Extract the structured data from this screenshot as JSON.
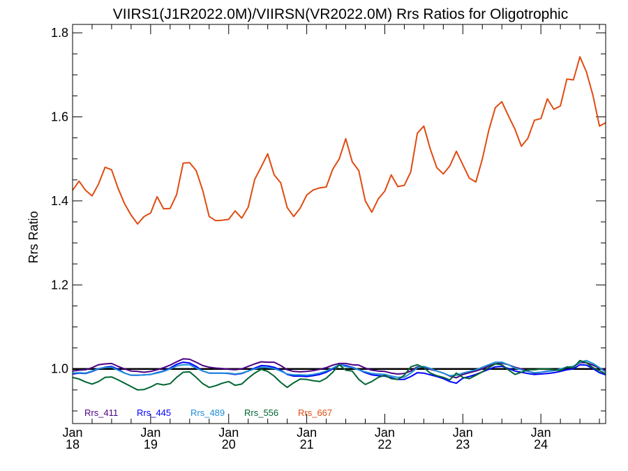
{
  "chart_data": {
    "type": "line",
    "title": "VIIRS1(J1R2022.0M)/VIIRSN(VR2022.0M)  Rrs Ratios for Oligotrophic",
    "ylabel": "Rrs Ratio",
    "xlabel": "",
    "ylim": [
      0.87,
      1.82
    ],
    "xlim": [
      2018.0,
      2024.83
    ],
    "yticks": [
      {
        "value": 1.0,
        "label": "1.0"
      },
      {
        "value": 1.2,
        "label": "1.2"
      },
      {
        "value": 1.4,
        "label": "1.4"
      },
      {
        "value": 1.6,
        "label": "1.6"
      },
      {
        "value": 1.8,
        "label": "1.8"
      }
    ],
    "xticks": [
      {
        "value": 2018,
        "month": "Jan",
        "year": "18"
      },
      {
        "value": 2019,
        "month": "Jan",
        "year": "19"
      },
      {
        "value": 2020,
        "month": "Jan",
        "year": "20"
      },
      {
        "value": 2021,
        "month": "Jan",
        "year": "21"
      },
      {
        "value": 2022,
        "month": "Jan",
        "year": "22"
      },
      {
        "value": 2023,
        "month": "Jan",
        "year": "23"
      },
      {
        "value": 2024,
        "month": "Jan",
        "year": "24"
      }
    ],
    "reference_line": 1.0,
    "legend_position": "bottom-left",
    "series": [
      {
        "name": "Rrs_411",
        "color": "#4b0082",
        "x": [
          2018.0,
          2018.083,
          2018.167,
          2018.25,
          2018.333,
          2018.417,
          2018.5,
          2018.583,
          2018.667,
          2018.75,
          2018.833,
          2018.917,
          2019.0,
          2019.083,
          2019.167,
          2019.25,
          2019.333,
          2019.417,
          2019.5,
          2019.583,
          2019.667,
          2019.75,
          2019.833,
          2019.917,
          2020.0,
          2020.083,
          2020.167,
          2020.25,
          2020.333,
          2020.417,
          2020.5,
          2020.583,
          2020.667,
          2020.75,
          2020.833,
          2020.917,
          2021.0,
          2021.083,
          2021.167,
          2021.25,
          2021.333,
          2021.417,
          2021.5,
          2021.583,
          2021.667,
          2021.75,
          2021.833,
          2021.917,
          2022.0,
          2022.083,
          2022.167,
          2022.25,
          2022.333,
          2022.417,
          2022.5,
          2022.583,
          2022.667,
          2022.75,
          2022.833,
          2022.917,
          2023.0,
          2023.083,
          2023.167,
          2023.25,
          2023.333,
          2023.417,
          2023.5,
          2023.583,
          2023.667,
          2023.75,
          2023.833,
          2023.917,
          2024.0,
          2024.083,
          2024.167,
          2024.25,
          2024.333,
          2024.417,
          2024.5,
          2024.583,
          2024.667,
          2024.75,
          2024.83
        ],
        "values": [
          0.995,
          0.997,
          0.998,
          1.003,
          1.01,
          1.012,
          1.013,
          1.006,
          1.0,
          0.995,
          0.994,
          0.992,
          0.994,
          0.998,
          1.003,
          1.009,
          1.017,
          1.024,
          1.023,
          1.016,
          1.008,
          1.004,
          1.002,
          1.001,
          0.999,
          0.998,
          1.0,
          1.006,
          1.012,
          1.017,
          1.016,
          1.016,
          1.008,
          0.998,
          0.994,
          0.993,
          0.994,
          0.996,
          0.999,
          1.003,
          1.009,
          1.013,
          1.013,
          1.01,
          1.009,
          1.002,
          0.997,
          0.995,
          0.994,
          0.99,
          0.988,
          0.989,
          0.995,
          1.005,
          1.003,
          0.999,
          0.995,
          0.99,
          0.983,
          0.979,
          0.987,
          0.991,
          0.995,
          1.0,
          1.007,
          1.012,
          1.014,
          1.01,
          1.004,
          1.0,
          0.995,
          0.99,
          0.992,
          0.995,
          0.996,
          0.999,
          1.003,
          1.006,
          1.015,
          1.015,
          1.009,
          1.002,
          0.997
        ]
      },
      {
        "name": "Rrs_445",
        "color": "#0000ff",
        "x": [
          2018.0,
          2018.083,
          2018.167,
          2018.25,
          2018.333,
          2018.417,
          2018.5,
          2018.583,
          2018.667,
          2018.75,
          2018.833,
          2018.917,
          2019.0,
          2019.083,
          2019.167,
          2019.25,
          2019.333,
          2019.417,
          2019.5,
          2019.583,
          2019.667,
          2019.75,
          2019.833,
          2019.917,
          2020.0,
          2020.083,
          2020.167,
          2020.25,
          2020.333,
          2020.417,
          2020.5,
          2020.583,
          2020.667,
          2020.75,
          2020.833,
          2020.917,
          2021.0,
          2021.083,
          2021.167,
          2021.25,
          2021.333,
          2021.417,
          2021.5,
          2021.583,
          2021.667,
          2021.75,
          2021.833,
          2021.917,
          2022.0,
          2022.083,
          2022.167,
          2022.25,
          2022.333,
          2022.417,
          2022.5,
          2022.583,
          2022.667,
          2022.75,
          2022.833,
          2022.917,
          2023.0,
          2023.083,
          2023.167,
          2023.25,
          2023.333,
          2023.417,
          2023.5,
          2023.583,
          2023.667,
          2023.75,
          2023.833,
          2023.917,
          2024.0,
          2024.083,
          2024.167,
          2024.25,
          2024.333,
          2024.417,
          2024.5,
          2024.583,
          2024.667,
          2024.75,
          2024.83
        ],
        "values": [
          0.988,
          0.99,
          0.989,
          0.994,
          1.0,
          1.004,
          1.006,
          0.999,
          0.99,
          0.985,
          0.985,
          0.986,
          0.987,
          0.991,
          0.995,
          1.002,
          1.011,
          1.016,
          1.014,
          1.006,
          0.995,
          0.99,
          0.99,
          0.99,
          0.989,
          0.987,
          0.989,
          0.995,
          1.002,
          1.008,
          1.007,
          1.004,
          0.997,
          0.987,
          0.983,
          0.983,
          0.982,
          0.984,
          0.987,
          0.992,
          1.0,
          1.01,
          1.008,
          1.004,
          0.998,
          0.991,
          0.986,
          0.984,
          0.983,
          0.979,
          0.975,
          0.975,
          0.982,
          0.991,
          0.99,
          0.986,
          0.982,
          0.977,
          0.97,
          0.966,
          0.978,
          0.982,
          0.987,
          0.993,
          0.999,
          1.005,
          1.006,
          1.001,
          0.995,
          0.992,
          0.989,
          0.987,
          0.988,
          0.989,
          0.991,
          0.994,
          0.998,
          1.0,
          1.01,
          1.009,
          1.001,
          0.991,
          0.986
        ]
      },
      {
        "name": "Rrs_489",
        "color": "#1e8fd6",
        "x": [
          2018.0,
          2018.083,
          2018.167,
          2018.25,
          2018.333,
          2018.417,
          2018.5,
          2018.583,
          2018.667,
          2018.75,
          2018.833,
          2018.917,
          2019.0,
          2019.083,
          2019.167,
          2019.25,
          2019.333,
          2019.417,
          2019.5,
          2019.583,
          2019.667,
          2019.75,
          2019.833,
          2019.917,
          2020.0,
          2020.083,
          2020.167,
          2020.25,
          2020.333,
          2020.417,
          2020.5,
          2020.583,
          2020.667,
          2020.75,
          2020.833,
          2020.917,
          2021.0,
          2021.083,
          2021.167,
          2021.25,
          2021.333,
          2021.417,
          2021.5,
          2021.583,
          2021.667,
          2021.75,
          2021.833,
          2021.917,
          2022.0,
          2022.083,
          2022.167,
          2022.25,
          2022.333,
          2022.417,
          2022.5,
          2022.583,
          2022.667,
          2022.75,
          2022.833,
          2022.917,
          2023.0,
          2023.083,
          2023.167,
          2023.25,
          2023.333,
          2023.417,
          2023.5,
          2023.583,
          2023.667,
          2023.75,
          2023.833,
          2023.917,
          2024.0,
          2024.083,
          2024.167,
          2024.25,
          2024.333,
          2024.417,
          2024.5,
          2024.583,
          2024.667,
          2024.75,
          2024.83
        ],
        "values": [
          0.99,
          0.991,
          0.99,
          0.995,
          1.001,
          1.003,
          1.004,
          0.997,
          0.99,
          0.985,
          0.985,
          0.986,
          0.987,
          0.99,
          0.994,
          1.0,
          1.007,
          1.01,
          1.01,
          1.002,
          0.995,
          0.99,
          0.99,
          0.99,
          0.99,
          0.988,
          0.99,
          0.995,
          1.0,
          1.004,
          1.003,
          1.001,
          0.995,
          0.988,
          0.986,
          0.986,
          0.985,
          0.987,
          0.99,
          0.995,
          1.002,
          1.01,
          1.006,
          1.003,
          0.998,
          0.993,
          0.989,
          0.988,
          0.987,
          0.983,
          0.98,
          0.98,
          0.99,
          1.003,
          1.006,
          1.001,
          0.995,
          0.99,
          0.984,
          0.985,
          0.99,
          0.994,
          0.998,
          1.004,
          1.01,
          1.016,
          1.016,
          1.01,
          1.002,
          0.998,
          0.994,
          0.991,
          0.992,
          0.994,
          0.996,
          1.0,
          1.004,
          1.006,
          1.016,
          1.02,
          1.013,
          1.003,
          0.992
        ]
      },
      {
        "name": "Rrs_556",
        "color": "#006432",
        "x": [
          2018.0,
          2018.083,
          2018.167,
          2018.25,
          2018.333,
          2018.417,
          2018.5,
          2018.583,
          2018.667,
          2018.75,
          2018.833,
          2018.917,
          2019.0,
          2019.083,
          2019.167,
          2019.25,
          2019.333,
          2019.417,
          2019.5,
          2019.583,
          2019.667,
          2019.75,
          2019.833,
          2019.917,
          2020.0,
          2020.083,
          2020.167,
          2020.25,
          2020.333,
          2020.417,
          2020.5,
          2020.583,
          2020.667,
          2020.75,
          2020.833,
          2020.917,
          2021.0,
          2021.083,
          2021.167,
          2021.25,
          2021.333,
          2021.417,
          2021.5,
          2021.583,
          2021.667,
          2021.75,
          2021.833,
          2021.917,
          2022.0,
          2022.083,
          2022.167,
          2022.25,
          2022.333,
          2022.417,
          2022.5,
          2022.583,
          2022.667,
          2022.75,
          2022.833,
          2022.917,
          2023.0,
          2023.083,
          2023.167,
          2023.25,
          2023.333,
          2023.417,
          2023.5,
          2023.583,
          2023.667,
          2023.75,
          2023.833,
          2023.917,
          2024.0,
          2024.083,
          2024.167,
          2024.25,
          2024.333,
          2024.417,
          2024.5,
          2024.583,
          2024.667,
          2024.75,
          2024.83
        ],
        "values": [
          0.98,
          0.976,
          0.969,
          0.964,
          0.97,
          0.98,
          0.981,
          0.974,
          0.966,
          0.958,
          0.95,
          0.951,
          0.957,
          0.965,
          0.962,
          0.965,
          0.98,
          0.992,
          0.993,
          0.98,
          0.965,
          0.956,
          0.96,
          0.966,
          0.97,
          0.961,
          0.964,
          0.978,
          0.99,
          0.999,
          0.994,
          0.983,
          0.968,
          0.956,
          0.967,
          0.976,
          0.975,
          0.972,
          0.97,
          0.978,
          0.992,
          1.01,
          0.997,
          0.995,
          0.975,
          0.963,
          0.97,
          0.98,
          0.985,
          0.977,
          0.975,
          0.985,
          1.005,
          1.01,
          1.003,
          0.99,
          0.984,
          0.98,
          0.974,
          0.99,
          0.98,
          0.977,
          0.985,
          0.993,
          1.003,
          1.012,
          1.01,
          0.998,
          0.987,
          0.992,
          0.998,
          0.998,
          1.0,
          1.0,
          0.998,
          0.996,
          1.005,
          1.003,
          1.02,
          1.015,
          1.003,
          0.996,
          0.988
        ]
      },
      {
        "name": "Rrs_667",
        "color": "#e04b10",
        "x": [
          2018.0,
          2018.083,
          2018.167,
          2018.25,
          2018.333,
          2018.417,
          2018.5,
          2018.583,
          2018.667,
          2018.75,
          2018.833,
          2018.917,
          2019.0,
          2019.083,
          2019.167,
          2019.25,
          2019.333,
          2019.417,
          2019.5,
          2019.583,
          2019.667,
          2019.75,
          2019.833,
          2019.917,
          2020.0,
          2020.083,
          2020.167,
          2020.25,
          2020.333,
          2020.417,
          2020.5,
          2020.583,
          2020.667,
          2020.75,
          2020.833,
          2020.917,
          2021.0,
          2021.083,
          2021.167,
          2021.25,
          2021.333,
          2021.417,
          2021.5,
          2021.583,
          2021.667,
          2021.75,
          2021.833,
          2021.917,
          2022.0,
          2022.083,
          2022.167,
          2022.25,
          2022.333,
          2022.417,
          2022.5,
          2022.583,
          2022.667,
          2022.75,
          2022.833,
          2022.917,
          2023.0,
          2023.083,
          2023.167,
          2023.25,
          2023.333,
          2023.417,
          2023.5,
          2023.583,
          2023.667,
          2023.75,
          2023.833,
          2023.917,
          2024.0,
          2024.083,
          2024.167,
          2024.25,
          2024.333,
          2024.417,
          2024.5,
          2024.583,
          2024.667,
          2024.75,
          2024.83
        ],
        "values": [
          1.425,
          1.447,
          1.425,
          1.412,
          1.44,
          1.48,
          1.474,
          1.43,
          1.393,
          1.366,
          1.345,
          1.363,
          1.371,
          1.41,
          1.381,
          1.382,
          1.415,
          1.49,
          1.491,
          1.472,
          1.425,
          1.363,
          1.353,
          1.354,
          1.356,
          1.376,
          1.359,
          1.385,
          1.451,
          1.481,
          1.512,
          1.462,
          1.443,
          1.384,
          1.363,
          1.383,
          1.414,
          1.426,
          1.431,
          1.433,
          1.475,
          1.5,
          1.548,
          1.493,
          1.472,
          1.4,
          1.373,
          1.405,
          1.423,
          1.462,
          1.434,
          1.437,
          1.469,
          1.561,
          1.578,
          1.523,
          1.479,
          1.464,
          1.483,
          1.518,
          1.486,
          1.454,
          1.445,
          1.5,
          1.568,
          1.622,
          1.636,
          1.603,
          1.571,
          1.53,
          1.549,
          1.592,
          1.596,
          1.643,
          1.618,
          1.626,
          1.69,
          1.688,
          1.743,
          1.707,
          1.651,
          1.578,
          1.586
        ]
      }
    ]
  }
}
